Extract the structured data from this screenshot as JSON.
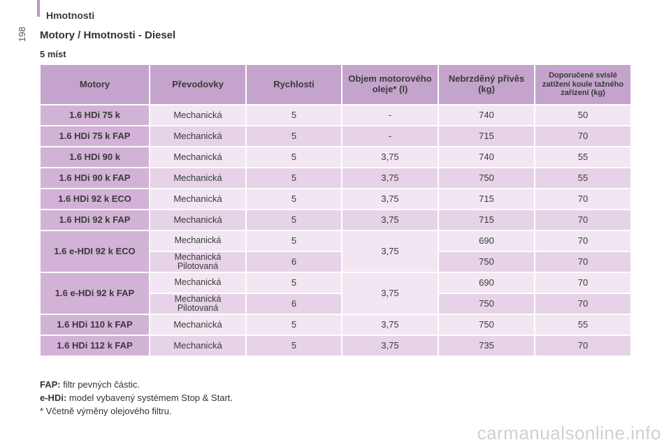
{
  "header": {
    "section": "Hmotnosti",
    "page_number": "198"
  },
  "title": "Motory / Hmotnosti - Diesel",
  "subtitle": "5 míst",
  "table": {
    "columns": [
      "Motory",
      "Převodovky",
      "Rychlosti",
      "Objem motorového oleje* (l)",
      "Nebrzděný přívěs (kg)",
      "Doporučené svislé zatížení koule tažného zařízení (kg)"
    ],
    "rows": [
      {
        "motor": "1.6 HDi 75 k",
        "gearbox": "Mechanická",
        "speeds": "5",
        "oil": "-",
        "trailer": "740",
        "load": "50"
      },
      {
        "motor": "1.6 HDi 75 k FAP",
        "gearbox": "Mechanická",
        "speeds": "5",
        "oil": "-",
        "trailer": "715",
        "load": "70"
      },
      {
        "motor": "1.6 HDi 90 k",
        "gearbox": "Mechanická",
        "speeds": "5",
        "oil": "3,75",
        "trailer": "740",
        "load": "55"
      },
      {
        "motor": "1.6 HDi 90 k FAP",
        "gearbox": "Mechanická",
        "speeds": "5",
        "oil": "3,75",
        "trailer": "750",
        "load": "55"
      },
      {
        "motor": "1.6 HDi 92 k ECO",
        "gearbox": "Mechanická",
        "speeds": "5",
        "oil": "3,75",
        "trailer": "715",
        "load": "70"
      },
      {
        "motor": "1.6 HDi 92 k FAP",
        "gearbox": "Mechanická",
        "speeds": "5",
        "oil": "3,75",
        "trailer": "715",
        "load": "70"
      },
      {
        "motor": "1.6 e-HDI 92 k ECO",
        "oil": "3,75",
        "sub": [
          {
            "gearbox": "Mechanická",
            "speeds": "5",
            "trailer": "690",
            "load": "70"
          },
          {
            "gearbox": "Mechanická Pilotovaná",
            "speeds": "6",
            "trailer": "750",
            "load": "70"
          }
        ]
      },
      {
        "motor": "1.6 e-HDi 92 k FAP",
        "oil": "3,75",
        "sub": [
          {
            "gearbox": "Mechanická",
            "speeds": "5",
            "trailer": "690",
            "load": "70"
          },
          {
            "gearbox": "Mechanická Pilotovaná",
            "speeds": "6",
            "trailer": "750",
            "load": "70"
          }
        ]
      },
      {
        "motor": "1.6 HDi 110 k FAP",
        "gearbox": "Mechanická",
        "speeds": "5",
        "oil": "3,75",
        "trailer": "750",
        "load": "55"
      },
      {
        "motor": "1.6 HDi 112 k FAP",
        "gearbox": "Mechanická",
        "speeds": "5",
        "oil": "3,75",
        "trailer": "735",
        "load": "70"
      }
    ]
  },
  "notes": {
    "fap_term": "FAP:",
    "fap_text": "filtr pevných částic.",
    "ehdi_term": "e-HDi:",
    "ehdi_text": "model vybavený systémem Stop & Start.",
    "footnote": "* Včetně výměny olejového filtru."
  },
  "watermark": "carmanualsonline.info",
  "colors": {
    "header_bg": "#c4a4cc",
    "motor_bg": "#d2b2d6",
    "row_light": "#f1e6f2",
    "row_dark": "#e6d3e8",
    "accent_bar": "#b69ac4"
  }
}
